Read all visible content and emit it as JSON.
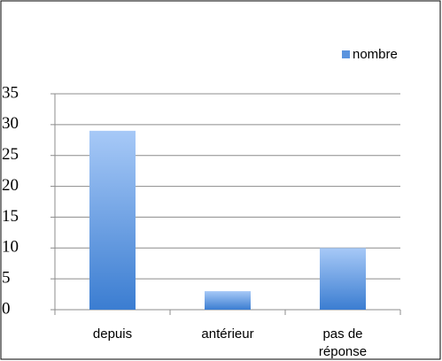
{
  "chart_data": {
    "type": "bar",
    "categories": [
      "depuis",
      "antérieur",
      "pas de réponse"
    ],
    "series": [
      {
        "name": "nombre",
        "color": "#5b94de",
        "values": [
          29,
          3,
          10
        ]
      }
    ],
    "ylim": [
      0,
      35
    ],
    "yticks": [
      0,
      5,
      10,
      15,
      20,
      25,
      30,
      35
    ],
    "grid": true,
    "legend": "top-right"
  }
}
